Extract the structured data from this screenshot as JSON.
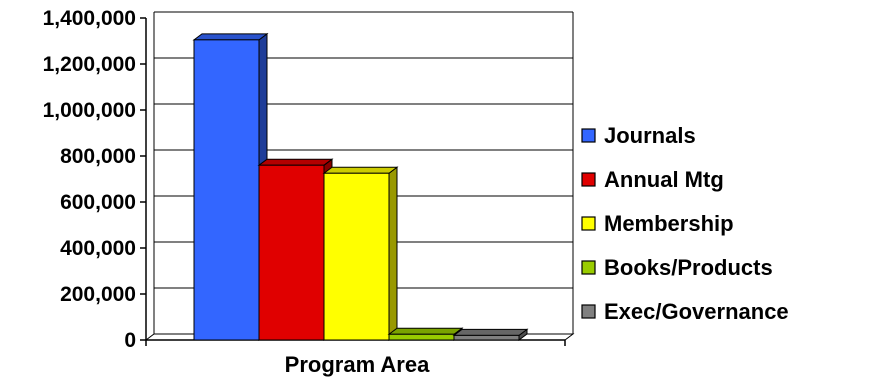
{
  "chart_data": {
    "type": "bar",
    "title": "",
    "xlabel": "Program Area",
    "ylabel": "",
    "ylim": [
      0,
      1400000
    ],
    "yticks": [
      0,
      200000,
      400000,
      600000,
      800000,
      1000000,
      1200000,
      1400000
    ],
    "ytick_labels": [
      "0",
      "200,000",
      "400,000",
      "600,000",
      "800,000",
      "1,000,000",
      "1,200,000",
      "1,400,000"
    ],
    "grid": true,
    "legend_position": "right",
    "categories": [
      "Program Area"
    ],
    "series": [
      {
        "name": "Journals",
        "values": [
          1305000
        ],
        "color": "#3366FF"
      },
      {
        "name": "Annual Mtg",
        "values": [
          760000
        ],
        "color": "#E00000"
      },
      {
        "name": "Membership",
        "values": [
          725000
        ],
        "color": "#FFFF00"
      },
      {
        "name": "Books/Products",
        "values": [
          25000
        ],
        "color": "#99CC00"
      },
      {
        "name": "Exec/Governance",
        "values": [
          20000
        ],
        "color": "#808080"
      }
    ]
  }
}
